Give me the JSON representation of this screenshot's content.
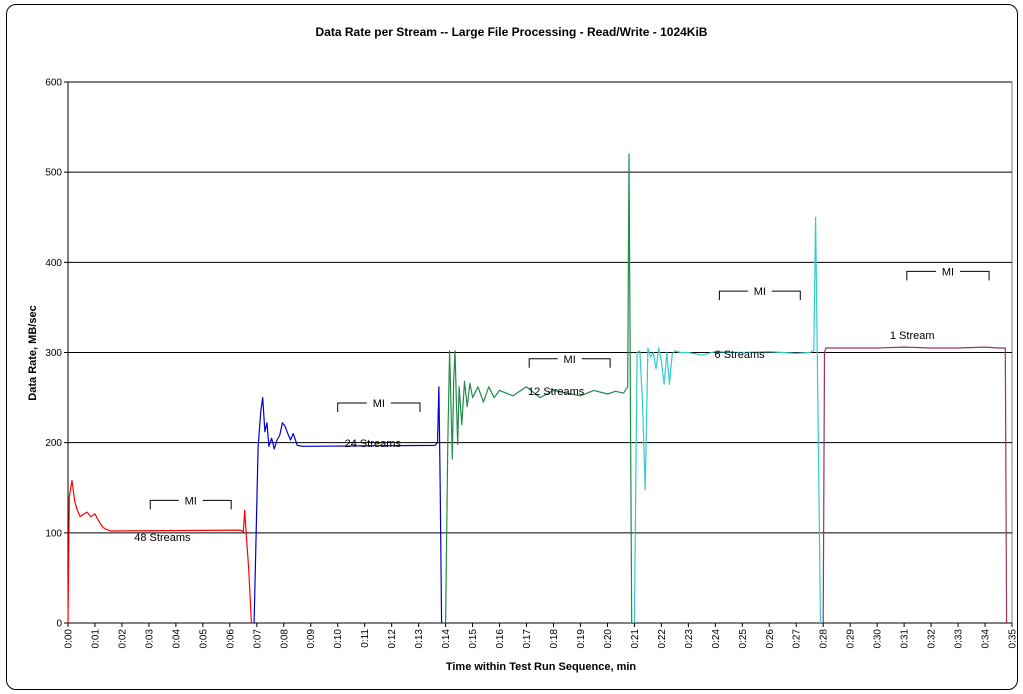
{
  "chart_data": {
    "type": "line",
    "title": "Data Rate per Stream -- Large File Processing - Read/Write - 1024KiB",
    "xlabel": "Time within Test Run Sequence, min",
    "ylabel": "Data Rate, MB/sec",
    "ylim": [
      0,
      600
    ],
    "yticks": [
      "0",
      "100",
      "200",
      "300",
      "400",
      "500",
      "600"
    ],
    "xlim": [
      0,
      35
    ],
    "xticks": [
      "0:00",
      "0:01",
      "0:02",
      "0:03",
      "0:04",
      "0:05",
      "0:06",
      "0:07",
      "0:08",
      "0:09",
      "0:10",
      "0:11",
      "0:12",
      "0:13",
      "0:14",
      "0:15",
      "0:16",
      "0:17",
      "0:18",
      "0:19",
      "0:20",
      "0:21",
      "0:22",
      "0:23",
      "0:24",
      "0:25",
      "0:26",
      "0:27",
      "0:28",
      "0:29",
      "0:30",
      "0:31",
      "0:32",
      "0:33",
      "0:34",
      "0:35"
    ],
    "grid": "horizontal",
    "legend": "none",
    "colors": {
      "48 Streams": "#ff0000",
      "24 Streams": "#0000cc",
      "12 Streams": "#228b4a",
      "6 Streams": "#33cccc",
      "1 Stream": "#993366",
      "grid": "#000000"
    },
    "series": [
      {
        "color_key": "48 Streams",
        "x": [
          0.0,
          0.05,
          0.15,
          0.25,
          0.35,
          0.45,
          0.55,
          0.7,
          0.85,
          1.0,
          1.1,
          1.2,
          1.3,
          1.4,
          1.5,
          1.6,
          6.4,
          6.5,
          6.55,
          6.6,
          6.7,
          6.8
        ],
        "y": [
          0,
          140,
          158,
          135,
          125,
          118,
          120,
          123,
          118,
          121,
          115,
          110,
          106,
          104,
          103,
          102,
          103,
          101,
          125,
          102,
          60,
          0
        ]
      },
      {
        "color_key": "24 Streams",
        "x": [
          6.9,
          7.05,
          7.15,
          7.22,
          7.3,
          7.38,
          7.45,
          7.55,
          7.65,
          7.75,
          7.85,
          7.95,
          8.05,
          8.15,
          8.25,
          8.35,
          8.5,
          8.7,
          13.6,
          13.7,
          13.75,
          13.8,
          13.85
        ],
        "y": [
          0,
          195,
          235,
          250,
          212,
          222,
          196,
          205,
          193,
          203,
          208,
          222,
          218,
          210,
          203,
          210,
          197,
          196,
          197,
          200,
          262,
          150,
          0
        ]
      },
      {
        "color_key": "12 Streams",
        "x": [
          14.0,
          14.08,
          14.15,
          14.2,
          14.25,
          14.3,
          14.35,
          14.4,
          14.45,
          14.5,
          14.6,
          14.7,
          14.8,
          14.9,
          15.0,
          15.2,
          15.4,
          15.6,
          15.8,
          16.0,
          16.5,
          17.0,
          17.5,
          18.0,
          18.5,
          19.0,
          19.5,
          20.0,
          20.3,
          20.6,
          20.75,
          20.8,
          20.85,
          20.9
        ],
        "y": [
          0,
          200,
          302,
          240,
          182,
          270,
          302,
          245,
          198,
          262,
          220,
          268,
          240,
          266,
          250,
          262,
          245,
          262,
          250,
          258,
          252,
          262,
          250,
          258,
          255,
          252,
          258,
          254,
          257,
          255,
          262,
          520,
          250,
          0
        ]
      },
      {
        "color_key": "6 Streams",
        "x": [
          21.0,
          21.1,
          21.2,
          21.3,
          21.4,
          21.5,
          21.6,
          21.7,
          21.8,
          21.9,
          22.0,
          22.1,
          22.2,
          22.3,
          22.4,
          22.5,
          22.7,
          23.0,
          23.5,
          24.0,
          25.0,
          26.0,
          27.0,
          27.5,
          27.65,
          27.72,
          27.8,
          27.9
        ],
        "y": [
          0,
          300,
          302,
          245,
          148,
          305,
          295,
          300,
          282,
          305,
          290,
          265,
          300,
          265,
          298,
          302,
          300,
          300,
          297,
          301,
          300,
          301,
          299,
          300,
          302,
          450,
          250,
          0
        ]
      },
      {
        "color_key": "1 Stream",
        "x": [
          28.0,
          28.05,
          28.1,
          28.3,
          29.0,
          30.0,
          31.0,
          32.0,
          33.0,
          34.0,
          34.5,
          34.7,
          34.75,
          34.8
        ],
        "y": [
          0,
          300,
          305,
          305,
          305,
          305,
          306,
          305,
          305,
          306,
          305,
          305,
          305,
          0
        ]
      }
    ],
    "annotations": [
      {
        "text": "48 Streams",
        "x": 3.5,
        "y": 91
      },
      {
        "text": "24 Streams",
        "x": 11.3,
        "y": 195
      },
      {
        "text": "12 Streams",
        "x": 18.1,
        "y": 253
      },
      {
        "text": "6 Streams",
        "x": 24.9,
        "y": 294
      },
      {
        "text": "1 Stream",
        "x": 31.3,
        "y": 315
      }
    ],
    "mi_brackets": [
      {
        "text": "MI",
        "x0": 3.05,
        "x1": 6.05,
        "y": 136
      },
      {
        "text": "MI",
        "x0": 10.0,
        "x1": 13.05,
        "y": 244
      },
      {
        "text": "MI",
        "x0": 17.1,
        "x1": 20.1,
        "y": 293
      },
      {
        "text": "MI",
        "x0": 24.15,
        "x1": 27.15,
        "y": 368
      },
      {
        "text": "MI",
        "x0": 31.1,
        "x1": 34.15,
        "y": 390
      }
    ]
  }
}
